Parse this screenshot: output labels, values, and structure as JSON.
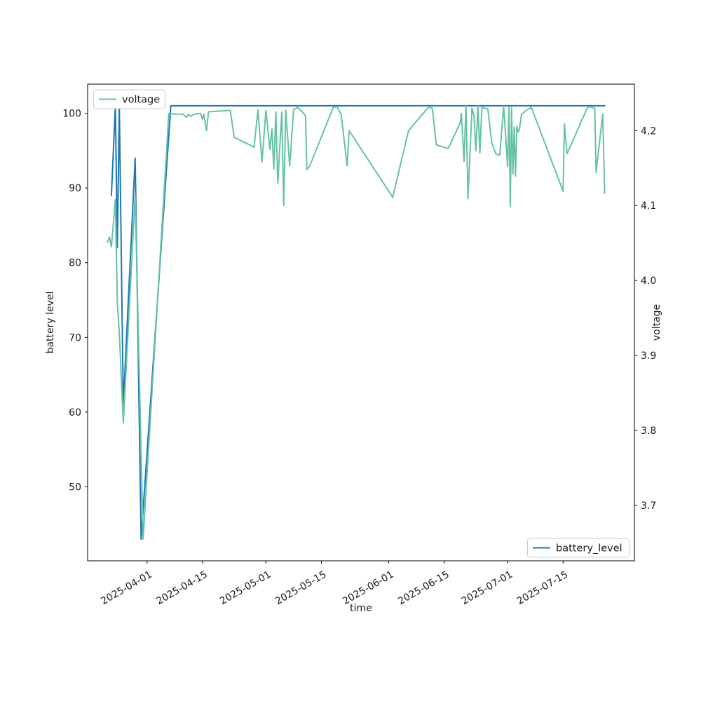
{
  "figure": {
    "xlabel": "time",
    "ylabel_left": "battery level",
    "ylabel_right": "voltage",
    "legend_top_left": {
      "label": "voltage",
      "color": "#66c2a5"
    },
    "legend_bottom_right": {
      "label": "battery_level",
      "color": "#1f77b4"
    },
    "background": "#ffffff",
    "spine_color": "#000000"
  },
  "chart_data": {
    "type": "line",
    "title": "",
    "xlabel": "time",
    "grid": false,
    "x_axis": {
      "range": [
        "2025-03-17",
        "2025-08-02"
      ],
      "ticks": [
        "2025-04-01",
        "2025-04-15",
        "2025-05-01",
        "2025-05-15",
        "2025-06-01",
        "2025-06-15",
        "2025-07-01",
        "2025-07-15"
      ],
      "tick_rotation_deg": 30
    },
    "y_axis_left": {
      "label": "battery level",
      "range": [
        40.1,
        103.9
      ],
      "ticks": [
        50,
        60,
        70,
        80,
        90,
        100
      ]
    },
    "y_axis_right": {
      "label": "voltage",
      "range": [
        3.626,
        4.262
      ],
      "ticks": [
        3.7,
        3.8,
        3.9,
        4.0,
        4.1,
        4.2
      ]
    },
    "series": [
      {
        "name": "battery_level",
        "axis": "left",
        "color": "#1f77b4",
        "legend_position": "lower right",
        "points": [
          [
            "2025-03-23",
            89
          ],
          [
            "2025-03-24",
            101
          ],
          [
            "2025-03-24T12",
            82
          ],
          [
            "2025-03-25",
            101
          ],
          [
            "2025-03-26",
            61
          ],
          [
            "2025-03-29",
            94
          ],
          [
            "2025-03-30T12",
            43
          ],
          [
            "2025-04-07",
            101
          ],
          [
            "2025-07-25T12",
            101
          ]
        ]
      },
      {
        "name": "voltage",
        "axis": "right",
        "color": "#66c2a5",
        "legend_position": "upper left",
        "points": [
          [
            "2025-03-22",
            4.051
          ],
          [
            "2025-03-22T12",
            4.058
          ],
          [
            "2025-03-23",
            4.045
          ],
          [
            "2025-03-24",
            4.108
          ],
          [
            "2025-03-24T12",
            3.97
          ],
          [
            "2025-03-25",
            3.93
          ],
          [
            "2025-03-26",
            3.81
          ],
          [
            "2025-03-29",
            4.113
          ],
          [
            "2025-03-31",
            3.655
          ],
          [
            "2025-04-06T12",
            4.223
          ],
          [
            "2025-04-08",
            4.222
          ],
          [
            "2025-04-10",
            4.222
          ],
          [
            "2025-04-11",
            4.218
          ],
          [
            "2025-04-11T12",
            4.222
          ],
          [
            "2025-04-12",
            4.219
          ],
          [
            "2025-04-13",
            4.222
          ],
          [
            "2025-04-14T12",
            4.223
          ],
          [
            "2025-04-15",
            4.215
          ],
          [
            "2025-04-15T08",
            4.222
          ],
          [
            "2025-04-16",
            4.2
          ],
          [
            "2025-04-16T12",
            4.225
          ],
          [
            "2025-04-22",
            4.227
          ],
          [
            "2025-04-23",
            4.191
          ],
          [
            "2025-04-28",
            4.178
          ],
          [
            "2025-04-29",
            4.228
          ],
          [
            "2025-04-30",
            4.158
          ],
          [
            "2025-05-01",
            4.227
          ],
          [
            "2025-05-02",
            4.175
          ],
          [
            "2025-05-02T12",
            4.202
          ],
          [
            "2025-05-03",
            4.149
          ],
          [
            "2025-05-03T12",
            4.225
          ],
          [
            "2025-05-04",
            4.13
          ],
          [
            "2025-05-05",
            4.225
          ],
          [
            "2025-05-05T12",
            4.1
          ],
          [
            "2025-05-06",
            4.227
          ],
          [
            "2025-05-07",
            4.153
          ],
          [
            "2025-05-08",
            4.228
          ],
          [
            "2025-05-09",
            4.231
          ],
          [
            "2025-05-10",
            4.226
          ],
          [
            "2025-05-11",
            4.22
          ],
          [
            "2025-05-11T08",
            4.148
          ],
          [
            "2025-05-12",
            4.152
          ],
          [
            "2025-05-18",
            4.231
          ],
          [
            "2025-05-19",
            4.232
          ],
          [
            "2025-05-20",
            4.221
          ],
          [
            "2025-05-21T12",
            4.153
          ],
          [
            "2025-05-22",
            4.2
          ],
          [
            "2025-06-02",
            4.111
          ],
          [
            "2025-06-06",
            4.2
          ],
          [
            "2025-06-11",
            4.231
          ],
          [
            "2025-06-12",
            4.23
          ],
          [
            "2025-06-13",
            4.181
          ],
          [
            "2025-06-16",
            4.176
          ],
          [
            "2025-06-19",
            4.21
          ],
          [
            "2025-06-19T08",
            4.223
          ],
          [
            "2025-06-20",
            4.159
          ],
          [
            "2025-06-20T12",
            4.233
          ],
          [
            "2025-06-21",
            4.109
          ],
          [
            "2025-06-22",
            4.23
          ],
          [
            "2025-06-22T12",
            4.22
          ],
          [
            "2025-06-23",
            4.173
          ],
          [
            "2025-06-23T12",
            4.233
          ],
          [
            "2025-06-24",
            4.17
          ],
          [
            "2025-06-24T12",
            4.231
          ],
          [
            "2025-06-26",
            4.229
          ],
          [
            "2025-06-27",
            4.184
          ],
          [
            "2025-06-28",
            4.169
          ],
          [
            "2025-06-29",
            4.167
          ],
          [
            "2025-06-30",
            4.233
          ],
          [
            "2025-07-01",
            4.152
          ],
          [
            "2025-07-01T08",
            4.231
          ],
          [
            "2025-07-01T16",
            4.099
          ],
          [
            "2025-07-02",
            4.231
          ],
          [
            "2025-07-02T08",
            4.142
          ],
          [
            "2025-07-02T16",
            4.205
          ],
          [
            "2025-07-03",
            4.139
          ],
          [
            "2025-07-03T08",
            4.206
          ],
          [
            "2025-07-03T16",
            4.198
          ],
          [
            "2025-07-04",
            4.202
          ],
          [
            "2025-07-04T12",
            4.222
          ],
          [
            "2025-07-06",
            4.228
          ],
          [
            "2025-07-07",
            4.231
          ],
          [
            "2025-07-15",
            4.119
          ],
          [
            "2025-07-15T08",
            4.209
          ],
          [
            "2025-07-16",
            4.169
          ],
          [
            "2025-07-21",
            4.229
          ],
          [
            "2025-07-21T12",
            4.232
          ],
          [
            "2025-07-23",
            4.23
          ],
          [
            "2025-07-23T08",
            4.144
          ],
          [
            "2025-07-25",
            4.222
          ],
          [
            "2025-07-25T12",
            4.116
          ]
        ]
      }
    ]
  }
}
